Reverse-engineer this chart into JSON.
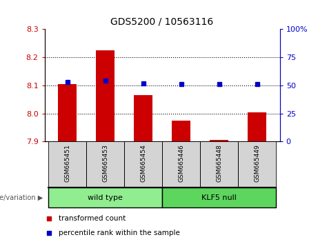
{
  "title": "GDS5200 / 10563116",
  "samples": [
    "GSM665451",
    "GSM665453",
    "GSM665454",
    "GSM665446",
    "GSM665448",
    "GSM665449"
  ],
  "red_values": [
    8.105,
    8.225,
    8.065,
    7.975,
    7.905,
    8.005
  ],
  "blue_values": [
    53,
    54,
    52,
    51,
    51,
    51
  ],
  "ylim_left": [
    7.9,
    8.3
  ],
  "ylim_right": [
    0,
    100
  ],
  "yticks_left": [
    7.9,
    8.0,
    8.1,
    8.2,
    8.3
  ],
  "yticks_right": [
    0,
    25,
    50,
    75,
    100
  ],
  "bar_color": "#cc0000",
  "dot_color": "#0000cc",
  "bar_bottom": 7.9,
  "group_wildtype_color": "#90ee90",
  "group_klf5_color": "#5cd65c",
  "sample_box_color": "#d4d4d4",
  "legend_red": "transformed count",
  "legend_blue": "percentile rank within the sample",
  "genotype_label": "genotype/variation",
  "plot_bg": "#ffffff",
  "gridline_values": [
    8.0,
    8.1,
    8.2
  ]
}
